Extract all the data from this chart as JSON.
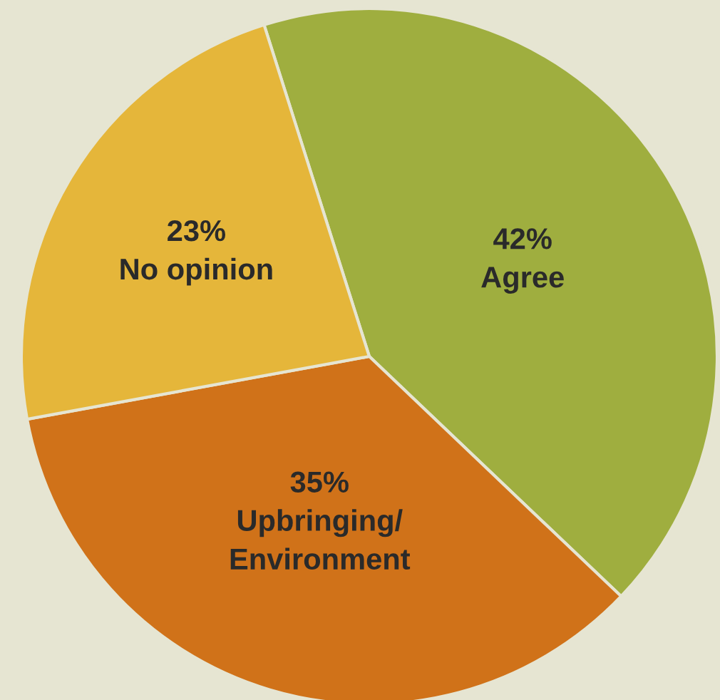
{
  "chart_data": {
    "type": "pie",
    "categories": [
      "Agree",
      "Upbringing/\nEnvironment",
      "No opinion"
    ],
    "values": [
      42,
      35,
      23
    ],
    "value_labels": [
      "42%",
      "35%",
      "23%"
    ],
    "colors": [
      "#9fae3f",
      "#d07219",
      "#e5b63a"
    ],
    "legend": false
  }
}
